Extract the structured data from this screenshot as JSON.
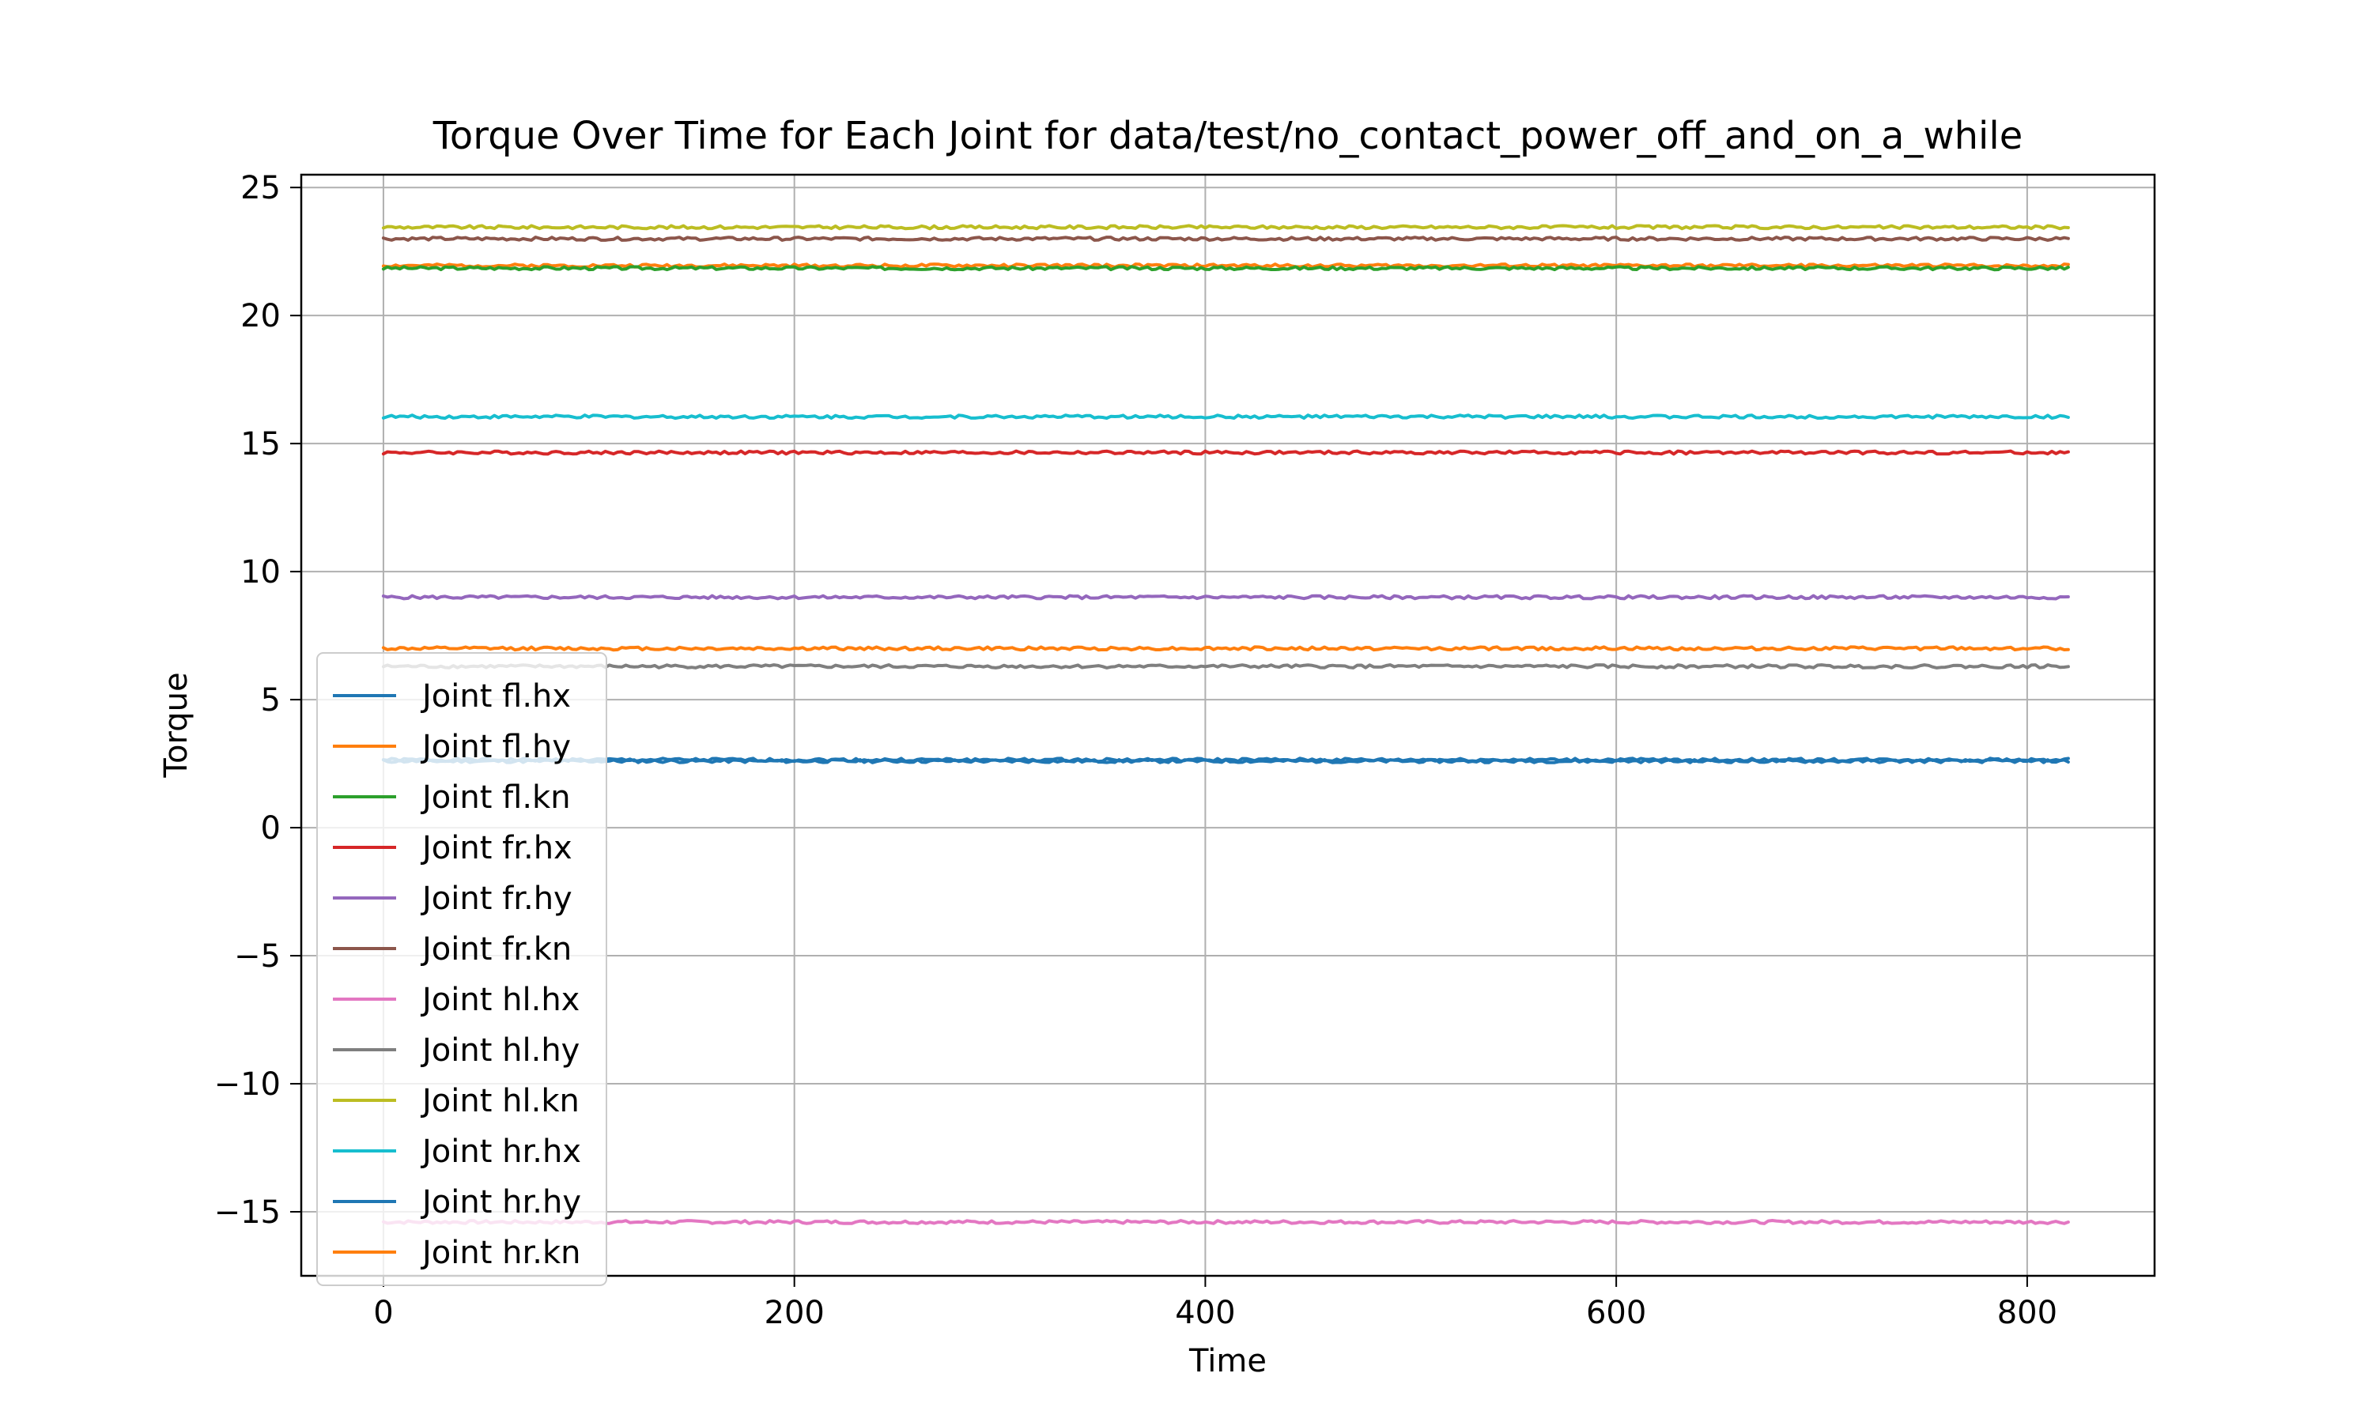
{
  "chart_data": {
    "type": "line",
    "title": "Torque Over Time for Each Joint for data/test/no_contact_power_off_and_on_a_while",
    "xlabel": "Time",
    "ylabel": "Torque",
    "xlim": [
      -40,
      862
    ],
    "ylim": [
      -17.5,
      25.5
    ],
    "x_ticks": [
      0,
      200,
      400,
      600,
      800
    ],
    "y_ticks": [
      -15,
      -10,
      -5,
      0,
      5,
      10,
      15,
      20,
      25
    ],
    "x_range": [
      0,
      821
    ],
    "grid": true,
    "legend_position": "lower-left",
    "series": [
      {
        "name": "Joint fl.hx",
        "color": "#1f77b4",
        "value": 2.65
      },
      {
        "name": "Joint fl.hy",
        "color": "#ff7f0e",
        "value": 21.95
      },
      {
        "name": "Joint fl.kn",
        "color": "#2ca02c",
        "value": 21.85
      },
      {
        "name": "Joint fr.hx",
        "color": "#d62728",
        "value": 14.65
      },
      {
        "name": "Joint fr.hy",
        "color": "#9467bd",
        "value": 9.0
      },
      {
        "name": "Joint fr.kn",
        "color": "#8c564b",
        "value": 23.0
      },
      {
        "name": "Joint hl.hx",
        "color": "#e377c2",
        "value": -15.4
      },
      {
        "name": "Joint hl.hy",
        "color": "#7f7f7f",
        "value": 6.3
      },
      {
        "name": "Joint hl.kn",
        "color": "#bcbd22",
        "value": 23.45
      },
      {
        "name": "Joint hr.hx",
        "color": "#17becf",
        "value": 16.05
      },
      {
        "name": "Joint hr.hy",
        "color": "#1f77b4",
        "value": 2.6
      },
      {
        "name": "Joint hr.kn",
        "color": "#ff7f0e",
        "value": 7.0
      }
    ]
  }
}
